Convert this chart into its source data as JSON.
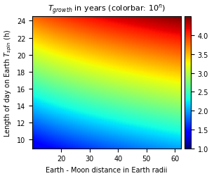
{
  "x_min": 10,
  "x_max": 62,
  "y_min": 9,
  "y_max": 24.5,
  "x_ticks": [
    20,
    30,
    40,
    50,
    60
  ],
  "y_ticks": [
    10,
    12,
    14,
    16,
    18,
    20,
    22,
    24
  ],
  "xlabel": "Earth - Moon distance in Earth radii",
  "title_rest": " in years (colorbar: 10",
  "title_exp": "n",
  "colorbar_ticks": [
    1,
    1.5,
    2,
    2.5,
    3,
    3.5,
    4
  ],
  "vmin": 1.0,
  "vmax": 4.5,
  "figsize": [
    3.05,
    2.51
  ],
  "dpi": 100,
  "comment_bl": "bottom-left (x=10,y=9) -> ~1.3 (blue-cyan)",
  "comment_br": "bottom-right (x=62,y=9) -> ~2.0 (cyan-green)",
  "comment_tl": "top-left (x=10,y=24.5) -> ~3.8 (orange-red)",
  "comment_tr": "top-right (x=62,y=24.5) -> ~4.5 (red)",
  "A_spin": 0.198,
  "B_dist": 0.013,
  "C_dist2": 0.0,
  "base_val": -0.45
}
